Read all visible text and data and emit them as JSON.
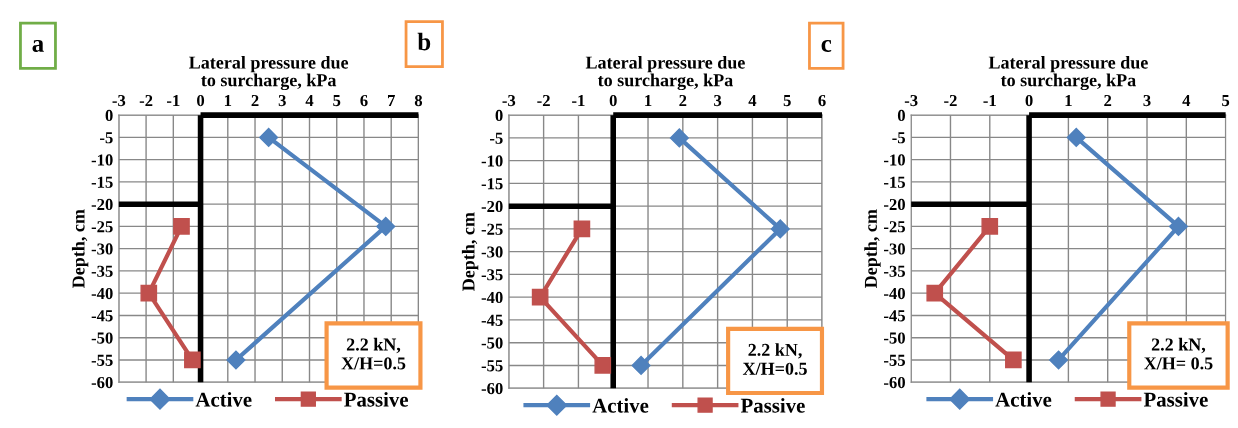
{
  "chart_data": [
    {
      "type": "line",
      "xlabel": "Lateral pressure due to surcharge, kPa",
      "ylabel": "Depth, cm",
      "annotations": [
        "a",
        "2.2 kN,\nX/H=0.5"
      ],
      "xlim": [
        -3,
        8
      ],
      "xticks": [
        -3,
        -2,
        -1,
        0,
        1,
        2,
        3,
        4,
        5,
        6,
        7,
        8
      ],
      "ylim": [
        -60,
        0
      ],
      "yticks": [
        0,
        -5,
        -10,
        -15,
        -20,
        -25,
        -30,
        -35,
        -40,
        -45,
        -50,
        -55,
        -60
      ],
      "grid": true,
      "legend": "bottom",
      "series": [
        {
          "name": "Active",
          "color": "#4f81bd",
          "marker": "diamond",
          "x": [
            2.5,
            6.8,
            1.3
          ],
          "values": [
            -5,
            -25,
            -55
          ]
        },
        {
          "name": "Passive",
          "color": "#c0504d",
          "marker": "square",
          "x": [
            -0.7,
            -1.9,
            -0.3
          ],
          "values": [
            -25,
            -40,
            -55
          ]
        },
        {
          "color": "#000000",
          "marker": "none",
          "x": [
            0,
            0
          ],
          "values": [
            0,
            -60
          ]
        },
        {
          "color": "#000000",
          "marker": "none",
          "x": [
            0,
            8
          ],
          "values": [
            0,
            0
          ]
        },
        {
          "color": "#000000",
          "marker": "none",
          "x": [
            -3,
            0
          ],
          "values": [
            -20,
            -20
          ]
        }
      ]
    },
    {
      "type": "line",
      "xlabel": "Lateral pressure due to surcharge, kPa",
      "ylabel": "Depth, cm",
      "annotations": [
        "b",
        "2.2 kN,\nX/H=0.5"
      ],
      "xlim": [
        -3,
        6
      ],
      "xticks": [
        -3,
        -2,
        -1,
        0,
        1,
        2,
        3,
        4,
        5,
        6
      ],
      "ylim": [
        -60,
        0
      ],
      "yticks": [
        0,
        -5,
        -10,
        -15,
        -20,
        -25,
        -30,
        -35,
        -40,
        -45,
        -50,
        -55,
        -60
      ],
      "grid": true,
      "legend": "bottom",
      "series": [
        {
          "name": "Active",
          "color": "#4f81bd",
          "marker": "diamond",
          "x": [
            1.9,
            4.8,
            0.8
          ],
          "values": [
            -5,
            -25,
            -55
          ]
        },
        {
          "name": "Passive",
          "color": "#c0504d",
          "marker": "square",
          "x": [
            -0.9,
            -2.1,
            -0.3
          ],
          "values": [
            -25,
            -40,
            -55
          ]
        },
        {
          "color": "#000000",
          "marker": "none",
          "x": [
            0,
            0
          ],
          "values": [
            0,
            -60
          ]
        },
        {
          "color": "#000000",
          "marker": "none",
          "x": [
            0,
            6
          ],
          "values": [
            0,
            0
          ]
        },
        {
          "color": "#000000",
          "marker": "none",
          "x": [
            -3,
            0
          ],
          "values": [
            -20,
            -20
          ]
        }
      ]
    },
    {
      "type": "line",
      "xlabel": "Lateral pressure due to surcharge, kPa",
      "ylabel": "Depth, cm",
      "annotations": [
        "c",
        "2.2 kN,\nX/H= 0.5"
      ],
      "xlim": [
        -3,
        5
      ],
      "xticks": [
        -3,
        -2,
        -1,
        0,
        1,
        2,
        3,
        4,
        5
      ],
      "ylim": [
        -60,
        0
      ],
      "yticks": [
        0,
        -5,
        -10,
        -15,
        -20,
        -25,
        -30,
        -35,
        -40,
        -45,
        -50,
        -55,
        -60
      ],
      "grid": true,
      "legend": "bottom",
      "series": [
        {
          "name": "Active",
          "color": "#4f81bd",
          "marker": "diamond",
          "x": [
            1.2,
            3.8,
            0.75
          ],
          "values": [
            -5,
            -25,
            -55
          ]
        },
        {
          "name": "Passive",
          "color": "#c0504d",
          "marker": "square",
          "x": [
            -1.0,
            -2.4,
            -0.4
          ],
          "values": [
            -25,
            -40,
            -55
          ]
        },
        {
          "color": "#000000",
          "marker": "none",
          "x": [
            0,
            0
          ],
          "values": [
            0,
            -60
          ]
        },
        {
          "color": "#000000",
          "marker": "none",
          "x": [
            0,
            5
          ],
          "values": [
            0,
            0
          ]
        },
        {
          "color": "#000000",
          "marker": "none",
          "x": [
            -3,
            0
          ],
          "values": [
            -20,
            -20
          ]
        }
      ]
    }
  ]
}
